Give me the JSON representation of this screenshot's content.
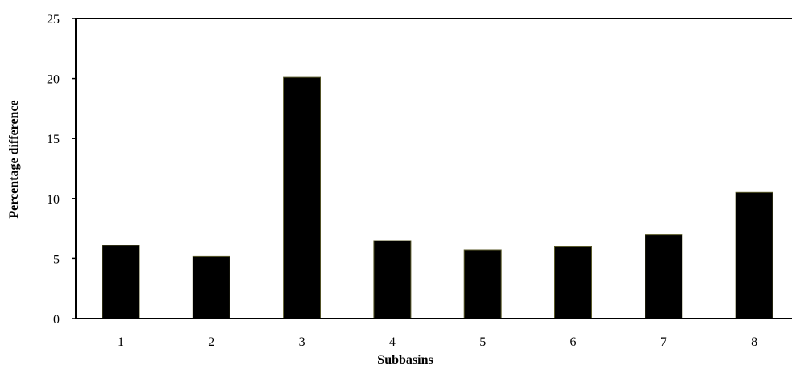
{
  "chart_data": {
    "type": "bar",
    "title": "",
    "xlabel": "Subbasins",
    "ylabel": "Percentage difference",
    "categories": [
      "1",
      "2",
      "3",
      "4",
      "5",
      "6",
      "7",
      "8"
    ],
    "values": [
      6.1,
      5.2,
      20.1,
      6.5,
      5.7,
      6.0,
      7.0,
      10.5
    ],
    "ylim": [
      0,
      25
    ],
    "yticks": [
      "0",
      "5",
      "10",
      "15",
      "20",
      "25"
    ],
    "grid": false,
    "legend": "none",
    "bar_color": "#000000",
    "bar_edge_color": "#5a5a2a"
  }
}
